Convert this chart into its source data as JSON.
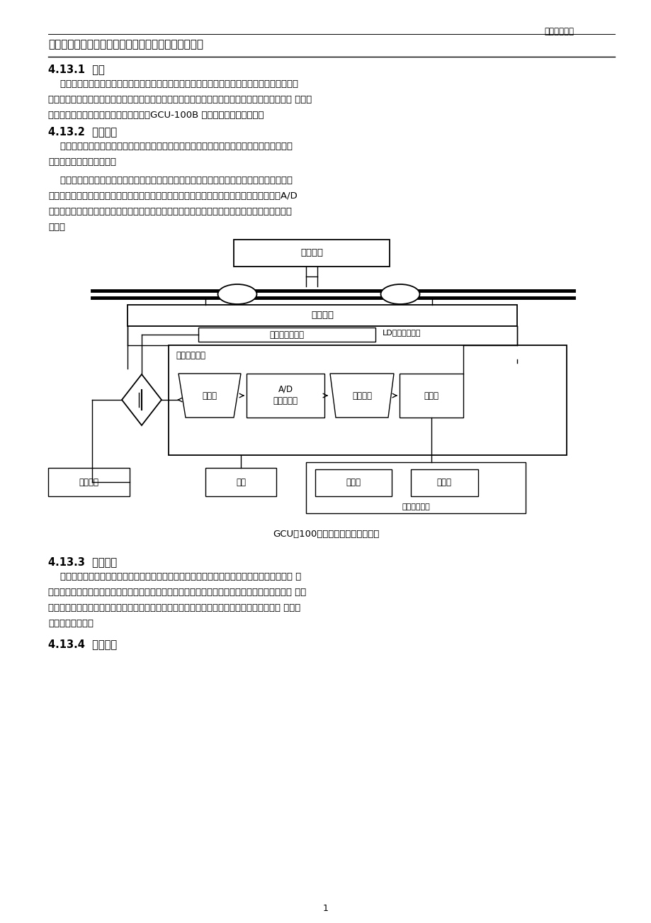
{
  "background_color": "#ffffff",
  "header_text": "燃料运行分册",
  "title": "不断轨动态电子轨道衡工作原理及运行常见故障及处理",
  "heading1": "4.13.1  概述",
  "para1a": "    动态电子轨道衡是进厂列车快速动态自动化计量的重要设备适用于标准轨距四轴货车的称重，可",
  "para1b": "对整列列车进行动态连续称重，可实现自动称量、自动运算、自动显示，可对称重结果进行时间、 车号、",
  "para1c": "毛、皮、净重登记录打印。我厂采用的是GCU-100B 不断轨动态电子轨道衡。",
  "heading2": "4.13.2  结构原理",
  "para2a": "    动态电子轨道衡由称量台面、传感器及电气部分组成。称量台面主要由计量台、过渡器、纵横",
  "para2b": "向限位器，覆盖板等组成。",
  "para3a": "    当被称车辆以一定速度通过称台时，载荷由称台轨、主梁体传至称重传感器。称重传感器将被",
  "para3b": "称载荷及车辆进入、退出称台的变化信息，转换模拟电信号送至处理器内，将信号放大整理，A/D",
  "para3c": "转换后，输送给微机，在预定程序下微机进行信息判断和数据处理，把称量结果从显示器和打印机",
  "para3d": "输出。",
  "diagram_caption": "GCU－100不断轨轨道衡工作原理图",
  "heading3": "4.13.3  设备特点",
  "para4a": "    不断轨动态电子轨道衡，没有轨道冲击，动态数据离散性小，重复性好，提高了过衡速度。尤 其",
  "para4b": "适用于繁忙线路，称重轨和机械部分一体化，维护量小，故障率低，承力结构传力准确、冲击小、 传感",
  "para4c": "器不易受损。传感器屏蔽在称体钢结构中，抗干扰，防雷效果好，设有断口和过渡断口，提高 了车辆",
  "para4d": "送行的安全可靠。",
  "heading4": "4.13.4  设备规范",
  "page_number": "1",
  "lbl_train": "铁路车辆",
  "lbl_platform": "机械台面",
  "lbl_sensor": "一次元件传感器",
  "lbl_ld": "LD数据采集系统",
  "lbl_secondary": "二次仪表系统",
  "lbl_amp": "放大器",
  "lbl_ad1": "A/D",
  "lbl_ad2": "模数转换器",
  "lbl_parallel": "并行接口",
  "lbl_computer": "计算机",
  "lbl_purifier": "净化电源",
  "lbl_keyboard": "键盘",
  "lbl_display_sys": "显示记录系统",
  "lbl_display": "显示器",
  "lbl_printer": "打印机"
}
